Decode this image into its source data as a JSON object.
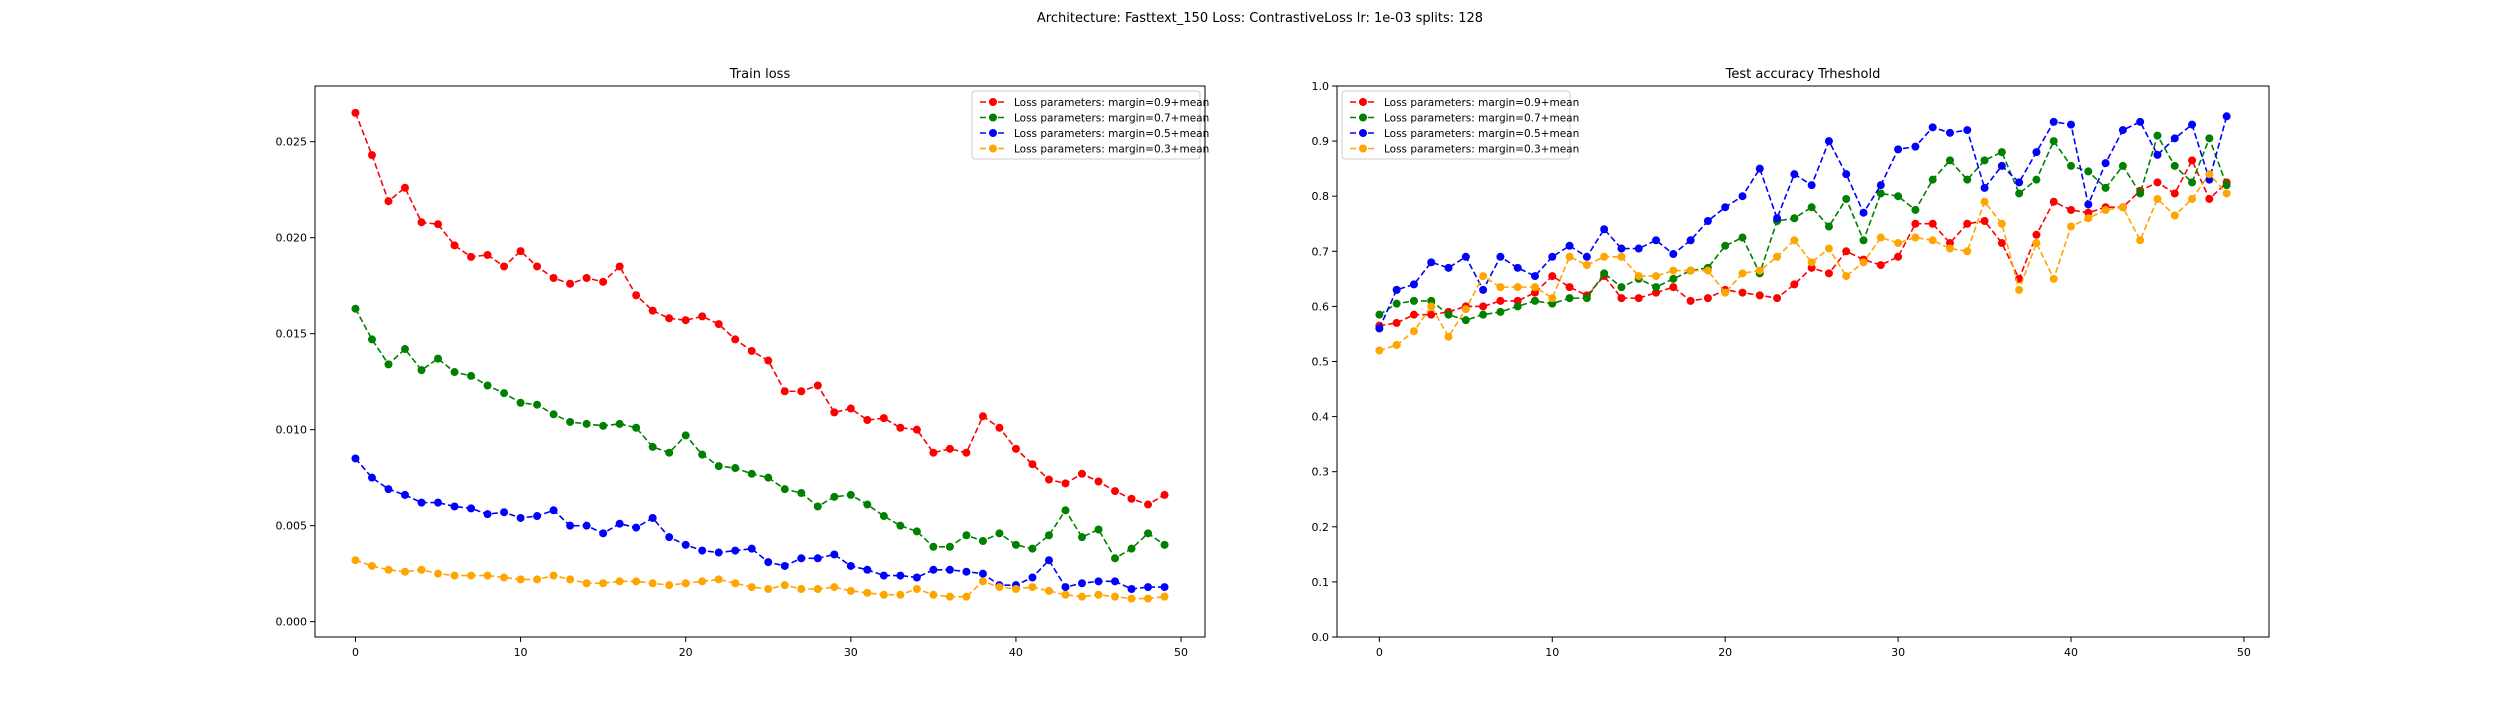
{
  "suptitle": "Architecture: Fasttext_150 Loss: ContrastiveLoss lr: 1e-03 splits: 128",
  "chart_data": [
    {
      "type": "line",
      "title": "Train loss",
      "xlabel": "",
      "ylabel": "",
      "xlim": [
        -2.45,
        51.45
      ],
      "ylim": [
        -0.0008,
        0.0279
      ],
      "xticks": [
        0,
        10,
        20,
        30,
        40,
        50
      ],
      "xtick_labels": [
        "0",
        "10",
        "20",
        "30",
        "40",
        "50"
      ],
      "yticks": [
        0.0,
        0.005,
        0.01,
        0.015,
        0.02,
        0.025
      ],
      "ytick_labels": [
        "0.000",
        "0.005",
        "0.010",
        "0.015",
        "0.020",
        "0.025"
      ],
      "grid": false,
      "legend_position": "upper right",
      "line_style": "dashed",
      "marker": "circle",
      "x": [
        0,
        1,
        2,
        3,
        4,
        5,
        6,
        7,
        8,
        9,
        10,
        11,
        12,
        13,
        14,
        15,
        16,
        17,
        18,
        19,
        20,
        21,
        22,
        23,
        24,
        25,
        26,
        27,
        28,
        29,
        30,
        31,
        32,
        33,
        34,
        35,
        36,
        37,
        38,
        39,
        40,
        41,
        42,
        43,
        44,
        45,
        46,
        47,
        48,
        49
      ],
      "series": [
        {
          "name": "Loss parameters: margin=0.9+mean",
          "color": "#ff0000",
          "values": [
            0.0265,
            0.0243,
            0.0219,
            0.0226,
            0.0208,
            0.0207,
            0.0196,
            0.019,
            0.0191,
            0.0185,
            0.0193,
            0.0185,
            0.0179,
            0.0176,
            0.0179,
            0.0177,
            0.0185,
            0.017,
            0.0162,
            0.0158,
            0.0157,
            0.0159,
            0.0155,
            0.0147,
            0.0141,
            0.0136,
            0.012,
            0.012,
            0.0123,
            0.0109,
            0.0111,
            0.0105,
            0.0106,
            0.0101,
            0.01,
            0.0088,
            0.009,
            0.0088,
            0.0107,
            0.0101,
            0.009,
            0.0082,
            0.0074,
            0.0072,
            0.0077,
            0.0073,
            0.0068,
            0.0064,
            0.0061,
            0.0066
          ]
        },
        {
          "name": "Loss parameters: margin=0.7+mean",
          "color": "#008000",
          "values": [
            0.0163,
            0.0147,
            0.0134,
            0.0142,
            0.0131,
            0.0137,
            0.013,
            0.0128,
            0.0123,
            0.0119,
            0.0114,
            0.0113,
            0.0108,
            0.0104,
            0.0103,
            0.0102,
            0.0103,
            0.0101,
            0.0091,
            0.0088,
            0.0097,
            0.0087,
            0.0081,
            0.008,
            0.0077,
            0.0075,
            0.0069,
            0.0067,
            0.006,
            0.0065,
            0.0066,
            0.0061,
            0.0055,
            0.005,
            0.0047,
            0.0039,
            0.0039,
            0.0045,
            0.0042,
            0.0046,
            0.004,
            0.0038,
            0.0045,
            0.0058,
            0.0044,
            0.0048,
            0.0033,
            0.0038,
            0.0046,
            0.004
          ]
        },
        {
          "name": "Loss parameters: margin=0.5+mean",
          "color": "#0000ff",
          "values": [
            0.0085,
            0.0075,
            0.0069,
            0.0066,
            0.0062,
            0.0062,
            0.006,
            0.0059,
            0.0056,
            0.0057,
            0.0054,
            0.0055,
            0.0058,
            0.005,
            0.005,
            0.0046,
            0.0051,
            0.0049,
            0.0054,
            0.0044,
            0.004,
            0.0037,
            0.0036,
            0.0037,
            0.0038,
            0.0031,
            0.0029,
            0.0033,
            0.0033,
            0.0035,
            0.0029,
            0.0027,
            0.0024,
            0.0024,
            0.0023,
            0.0027,
            0.0027,
            0.0026,
            0.0025,
            0.0019,
            0.0019,
            0.0023,
            0.0032,
            0.0018,
            0.002,
            0.0021,
            0.0021,
            0.0017,
            0.0018,
            0.0018
          ]
        },
        {
          "name": "Loss parameters: margin=0.3+mean",
          "color": "#ffa500",
          "values": [
            0.0032,
            0.0029,
            0.0027,
            0.0026,
            0.0027,
            0.0025,
            0.0024,
            0.0024,
            0.0024,
            0.0023,
            0.0022,
            0.0022,
            0.0024,
            0.0022,
            0.002,
            0.002,
            0.0021,
            0.0021,
            0.002,
            0.0019,
            0.002,
            0.0021,
            0.0022,
            0.002,
            0.0018,
            0.0017,
            0.0019,
            0.0017,
            0.0017,
            0.0018,
            0.0016,
            0.0015,
            0.0014,
            0.0014,
            0.0017,
            0.0014,
            0.0013,
            0.0013,
            0.0021,
            0.0018,
            0.0017,
            0.0018,
            0.0016,
            0.0014,
            0.0013,
            0.0014,
            0.0013,
            0.0012,
            0.0012,
            0.0013
          ]
        }
      ]
    },
    {
      "type": "line",
      "title": "Test accuracy Trheshold",
      "xlabel": "",
      "ylabel": "",
      "xlim": [
        -2.45,
        51.45
      ],
      "ylim": [
        0.0,
        1.0
      ],
      "xticks": [
        0,
        10,
        20,
        30,
        40,
        50
      ],
      "xtick_labels": [
        "0",
        "10",
        "20",
        "30",
        "40",
        "50"
      ],
      "yticks": [
        0.0,
        0.1,
        0.2,
        0.3,
        0.4,
        0.5,
        0.6,
        0.7,
        0.8,
        0.9,
        1.0
      ],
      "ytick_labels": [
        "0.0",
        "0.1",
        "0.2",
        "0.3",
        "0.4",
        "0.5",
        "0.6",
        "0.7",
        "0.8",
        "0.9",
        "1.0"
      ],
      "grid": false,
      "legend_position": "upper left",
      "line_style": "dashed",
      "marker": "circle",
      "x": [
        0,
        1,
        2,
        3,
        4,
        5,
        6,
        7,
        8,
        9,
        10,
        11,
        12,
        13,
        14,
        15,
        16,
        17,
        18,
        19,
        20,
        21,
        22,
        23,
        24,
        25,
        26,
        27,
        28,
        29,
        30,
        31,
        32,
        33,
        34,
        35,
        36,
        37,
        38,
        39,
        40,
        41,
        42,
        43,
        44,
        45,
        46,
        47,
        48,
        49
      ],
      "series": [
        {
          "name": "Loss parameters: margin=0.9+mean",
          "color": "#ff0000",
          "values": [
            0.565,
            0.57,
            0.585,
            0.585,
            0.59,
            0.6,
            0.6,
            0.61,
            0.61,
            0.625,
            0.655,
            0.635,
            0.62,
            0.655,
            0.615,
            0.615,
            0.625,
            0.635,
            0.61,
            0.615,
            0.63,
            0.625,
            0.62,
            0.615,
            0.64,
            0.67,
            0.66,
            0.7,
            0.685,
            0.675,
            0.69,
            0.75,
            0.75,
            0.715,
            0.75,
            0.755,
            0.715,
            0.65,
            0.73,
            0.79,
            0.775,
            0.77,
            0.78,
            0.78,
            0.81,
            0.825,
            0.805,
            0.865,
            0.795,
            0.825
          ]
        },
        {
          "name": "Loss parameters: margin=0.7+mean",
          "color": "#008000",
          "values": [
            0.585,
            0.605,
            0.61,
            0.61,
            0.585,
            0.575,
            0.585,
            0.59,
            0.6,
            0.61,
            0.605,
            0.615,
            0.615,
            0.66,
            0.635,
            0.65,
            0.635,
            0.65,
            0.665,
            0.67,
            0.71,
            0.725,
            0.66,
            0.755,
            0.76,
            0.78,
            0.745,
            0.795,
            0.72,
            0.805,
            0.8,
            0.775,
            0.83,
            0.865,
            0.83,
            0.865,
            0.88,
            0.805,
            0.83,
            0.9,
            0.855,
            0.845,
            0.815,
            0.855,
            0.805,
            0.91,
            0.855,
            0.825,
            0.905,
            0.82
          ]
        },
        {
          "name": "Loss parameters: margin=0.5+mean",
          "color": "#0000ff",
          "values": [
            0.56,
            0.63,
            0.64,
            0.68,
            0.67,
            0.69,
            0.63,
            0.69,
            0.67,
            0.655,
            0.69,
            0.71,
            0.69,
            0.74,
            0.705,
            0.705,
            0.72,
            0.695,
            0.72,
            0.755,
            0.78,
            0.8,
            0.85,
            0.76,
            0.84,
            0.82,
            0.9,
            0.84,
            0.77,
            0.82,
            0.885,
            0.89,
            0.925,
            0.915,
            0.92,
            0.815,
            0.855,
            0.825,
            0.88,
            0.935,
            0.93,
            0.785,
            0.86,
            0.92,
            0.935,
            0.875,
            0.905,
            0.93,
            0.83,
            0.945
          ]
        },
        {
          "name": "Loss parameters: margin=0.3+mean",
          "color": "#ffa500",
          "values": [
            0.52,
            0.53,
            0.555,
            0.6,
            0.545,
            0.595,
            0.655,
            0.635,
            0.635,
            0.635,
            0.615,
            0.69,
            0.675,
            0.69,
            0.69,
            0.655,
            0.655,
            0.665,
            0.665,
            0.665,
            0.625,
            0.66,
            0.665,
            0.69,
            0.72,
            0.68,
            0.705,
            0.655,
            0.68,
            0.725,
            0.715,
            0.725,
            0.72,
            0.705,
            0.7,
            0.79,
            0.75,
            0.63,
            0.715,
            0.65,
            0.745,
            0.76,
            0.775,
            0.78,
            0.72,
            0.795,
            0.765,
            0.795,
            0.84,
            0.805
          ]
        }
      ]
    }
  ]
}
